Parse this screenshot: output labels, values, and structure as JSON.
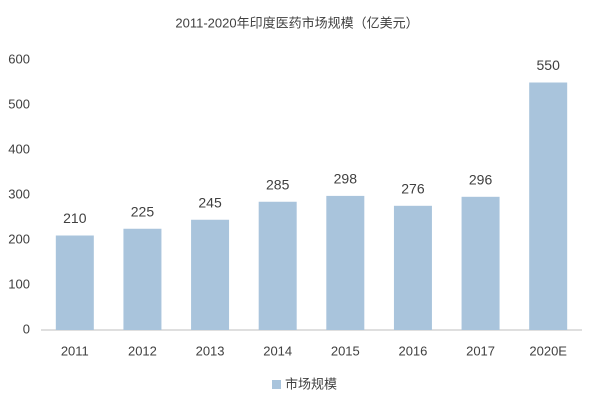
{
  "chart_data": {
    "type": "bar",
    "title": "2011-2020年印度医药市场规模（亿美元）",
    "categories": [
      "2011",
      "2012",
      "2013",
      "2014",
      "2015",
      "2016",
      "2017",
      "2020E"
    ],
    "series": [
      {
        "name": "市场规模",
        "color": "#a9c4dc",
        "values": [
          210,
          225,
          245,
          285,
          298,
          276,
          296,
          550
        ]
      }
    ],
    "ylim": [
      0,
      600
    ],
    "yticks": [
      0,
      100,
      200,
      300,
      400,
      500,
      600
    ],
    "grid": false,
    "legend": "bottom"
  }
}
